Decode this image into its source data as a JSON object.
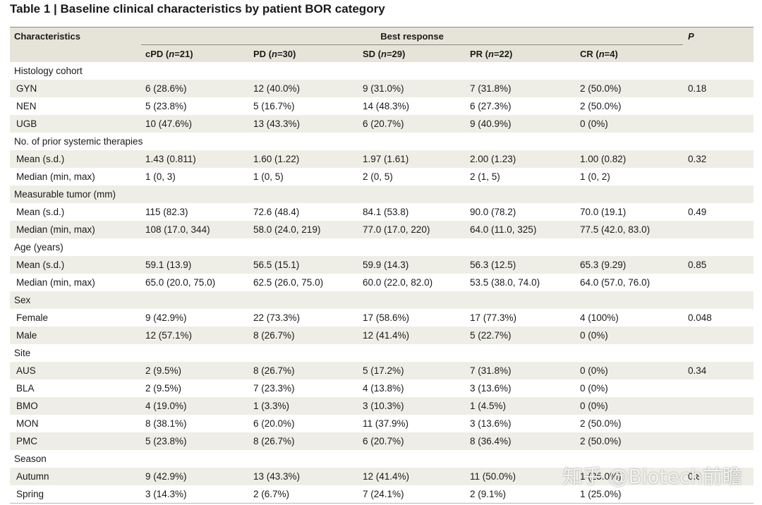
{
  "header": {
    "title": "Table 1 | Baseline clinical characteristics by patient BOR category"
  },
  "table": {
    "corner": "Characteristics",
    "group": "Best response",
    "p_header": "P",
    "columns": [
      [
        "cPD (",
        "n",
        "=21)"
      ],
      [
        "PD (",
        "n",
        "=30)"
      ],
      [
        "SD (",
        "n",
        "=29)"
      ],
      [
        "PR (",
        "n",
        "=22)"
      ],
      [
        "CR (",
        "n",
        "=4)"
      ]
    ],
    "rows": [
      [
        "Histology cohort"
      ],
      [
        "GYN",
        "6 (28.6%)",
        "12 (40.0%)",
        "9 (31.0%)",
        "7 (31.8%)",
        "2 (50.0%)",
        "0.18"
      ],
      [
        "NEN",
        "5 (23.8%)",
        "5 (16.7%)",
        "14 (48.3%)",
        "6 (27.3%)",
        "2 (50.0%)"
      ],
      [
        "UGB",
        "10 (47.6%)",
        "13 (43.3%)",
        "6 (20.7%)",
        "9 (40.9%)",
        "0 (0%)"
      ],
      [
        "No. of prior systemic therapies"
      ],
      [
        "Mean (s.d.)",
        "1.43 (0.811)",
        "1.60 (1.22)",
        "1.97 (1.61)",
        "2.00 (1.23)",
        "1.00 (0.82)",
        "0.32"
      ],
      [
        "Median (min, max)",
        "1 (0, 3)",
        "1 (0, 5)",
        "2 (0, 5)",
        "2 (1, 5)",
        "1 (0, 2)"
      ],
      [
        "Measurable tumor (mm)"
      ],
      [
        "Mean (s.d.)",
        "115 (82.3)",
        "72.6 (48.4)",
        "84.1 (53.8)",
        "90.0 (78.2)",
        "70.0 (19.1)",
        "0.49"
      ],
      [
        "Median (min, max)",
        "108 (17.0, 344)",
        "58.0 (24.0, 219)",
        "77.0 (17.0, 220)",
        "64.0 (11.0, 325)",
        "77.5 (42.0, 83.0)"
      ],
      [
        "Age (years)"
      ],
      [
        "Mean (s.d.)",
        "59.1 (13.9)",
        "56.5 (15.1)",
        "59.9 (14.3)",
        "56.3 (12.5)",
        "65.3 (9.29)",
        "0.85"
      ],
      [
        "Median (min, max)",
        "65.0 (20.0, 75.0)",
        "62.5 (26.0, 75.0)",
        "60.0 (22.0, 82.0)",
        "53.5 (38.0, 74.0)",
        "64.0 (57.0, 76.0)"
      ],
      [
        "Sex"
      ],
      [
        "Female",
        "9 (42.9%)",
        "22 (73.3%)",
        "17 (58.6%)",
        "17 (77.3%)",
        "4 (100%)",
        "0.048"
      ],
      [
        "Male",
        "12 (57.1%)",
        "8 (26.7%)",
        "12 (41.4%)",
        "5 (22.7%)",
        "0 (0%)"
      ],
      [
        "Site"
      ],
      [
        "AUS",
        "2 (9.5%)",
        "8 (26.7%)",
        "5 (17.2%)",
        "7 (31.8%)",
        "0 (0%)",
        "0.34"
      ],
      [
        "BLA",
        "2 (9.5%)",
        "7 (23.3%)",
        "4 (13.8%)",
        "3 (13.6%)",
        "0 (0%)"
      ],
      [
        "BMO",
        "4 (19.0%)",
        "1 (3.3%)",
        "3 (10.3%)",
        "1 (4.5%)",
        "0 (0%)"
      ],
      [
        "MON",
        "8 (38.1%)",
        "6 (20.0%)",
        "11 (37.9%)",
        "3 (13.6%)",
        "2 (50.0%)"
      ],
      [
        "PMC",
        "5 (23.8%)",
        "8 (26.7%)",
        "6 (20.7%)",
        "8 (36.4%)",
        "2 (50.0%)"
      ],
      [
        "Season"
      ],
      [
        "Autumn",
        "9 (42.9%)",
        "13 (43.3%)",
        "12 (41.4%)",
        "11 (50.0%)",
        "1 (25.0%)",
        "0.8"
      ],
      [
        "Spring",
        "3 (14.3%)",
        "2 (6.7%)",
        "7 (24.1%)",
        "2 (9.1%)",
        "1 (25.0%)"
      ]
    ]
  },
  "watermark": "知乎 @Biotech前瞻"
}
